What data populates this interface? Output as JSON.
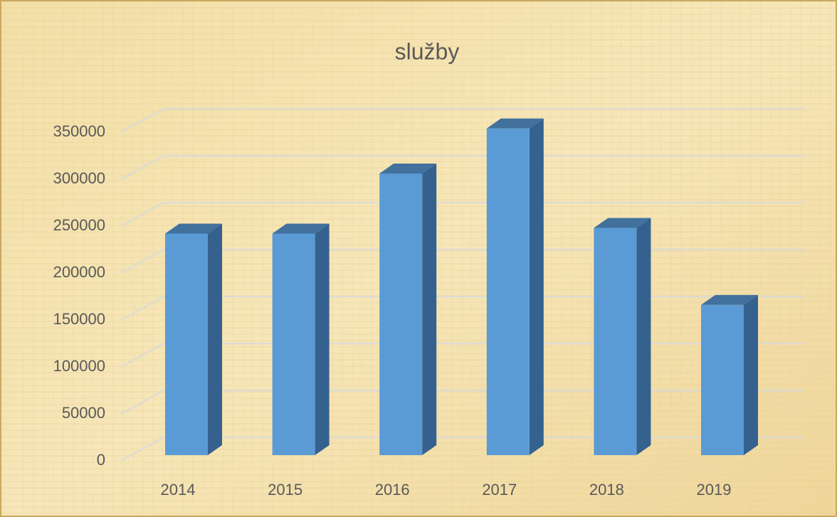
{
  "chart_data": {
    "type": "bar3d",
    "title": "služby",
    "categories": [
      "2014",
      "2015",
      "2016",
      "2017",
      "2018",
      "2019"
    ],
    "values": [
      236000,
      236000,
      300000,
      348000,
      242000,
      160000
    ],
    "color": "#5b9bd5",
    "ylim": [
      0,
      350000
    ],
    "yticks": [
      0,
      50000,
      100000,
      150000,
      200000,
      250000,
      300000,
      350000
    ],
    "grid": true
  }
}
